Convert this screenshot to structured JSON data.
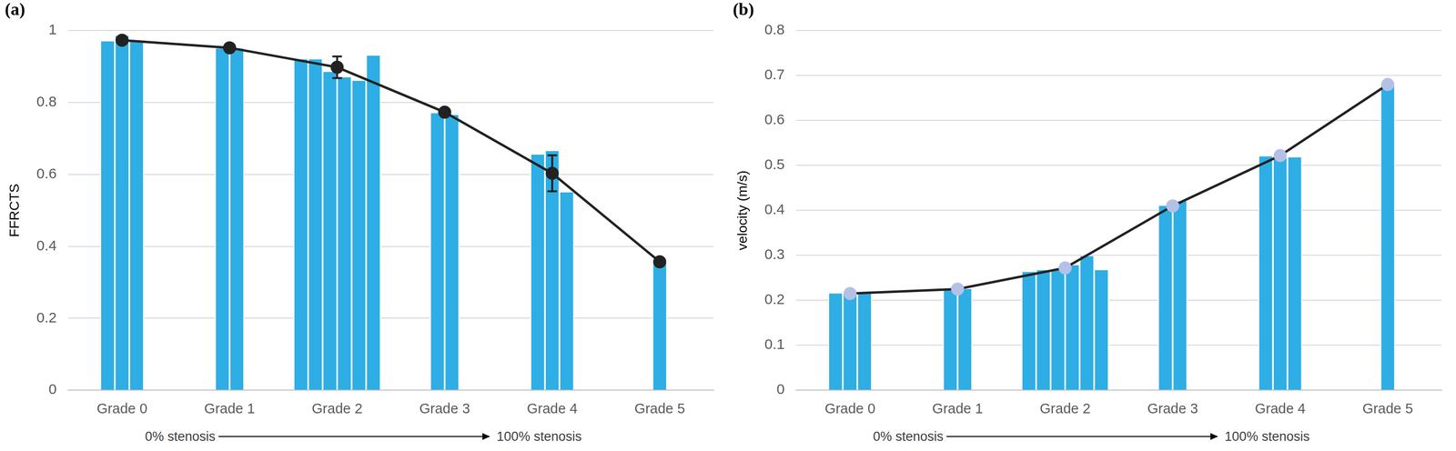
{
  "chart_data": [
    {
      "type": "bar",
      "title": "(a)",
      "y_label": "FFRCTS",
      "categories": [
        "Grade 0",
        "Grade 1",
        "Grade 2",
        "Grade 3",
        "Grade 4",
        "Grade 5"
      ],
      "samples": [
        [
          0.97,
          0.985,
          0.97
        ],
        [
          0.95,
          0.95
        ],
        [
          0.92,
          0.92,
          0.885,
          0.87,
          0.86,
          0.93
        ],
        [
          0.77,
          0.765
        ],
        [
          0.655,
          0.665,
          0.55
        ],
        [
          0.355
        ]
      ],
      "color": "#2eaee4",
      "line": {
        "type": "line",
        "color": "#222222",
        "marker": "circle",
        "colors": [
          "#222222",
          "#222222",
          "#222222",
          "#222222",
          "#222222",
          "#222222"
        ],
        "values": [
          0.973,
          0.952,
          0.898,
          0.773,
          0.603,
          0.357
        ],
        "error_bars": [
          null,
          null,
          0.03,
          null,
          0.05,
          null
        ]
      },
      "ylim": [
        0,
        1
      ],
      "yticks": [
        0,
        0.2,
        0.4,
        0.6,
        0.8,
        1
      ],
      "grid": true,
      "annotations": [
        "0% stenosis",
        "100% stenosis"
      ]
    },
    {
      "type": "bar",
      "title": "(b)",
      "y_label": "velocity (m/s)",
      "categories": [
        "Grade 0",
        "Grade 1",
        "Grade 2",
        "Grade 3",
        "Grade 4",
        "Grade 5"
      ],
      "samples": [
        [
          0.215,
          0.215,
          0.215
        ],
        [
          0.225,
          0.225
        ],
        [
          0.263,
          0.267,
          0.267,
          0.278,
          0.298,
          0.267
        ],
        [
          0.41,
          0.42
        ],
        [
          0.52,
          0.515,
          0.518
        ],
        [
          0.68
        ]
      ],
      "color": "#2eaee4",
      "line": {
        "type": "line",
        "color": "#222222",
        "marker": "circle",
        "colors": [
          "#b4c0e6",
          "#b4c0e6",
          "#b4c0e6",
          "#b4c0e6",
          "#b4c0e6",
          "#b4c0e6"
        ],
        "values": [
          0.215,
          0.225,
          0.272,
          0.41,
          0.522,
          0.68
        ]
      },
      "ylim": [
        0,
        0.8
      ],
      "yticks": [
        0,
        0.1,
        0.2,
        0.3,
        0.4,
        0.5,
        0.6,
        0.7,
        0.8
      ],
      "grid": true,
      "annotations": [
        "0% stenosis",
        "100% stenosis"
      ]
    }
  ]
}
